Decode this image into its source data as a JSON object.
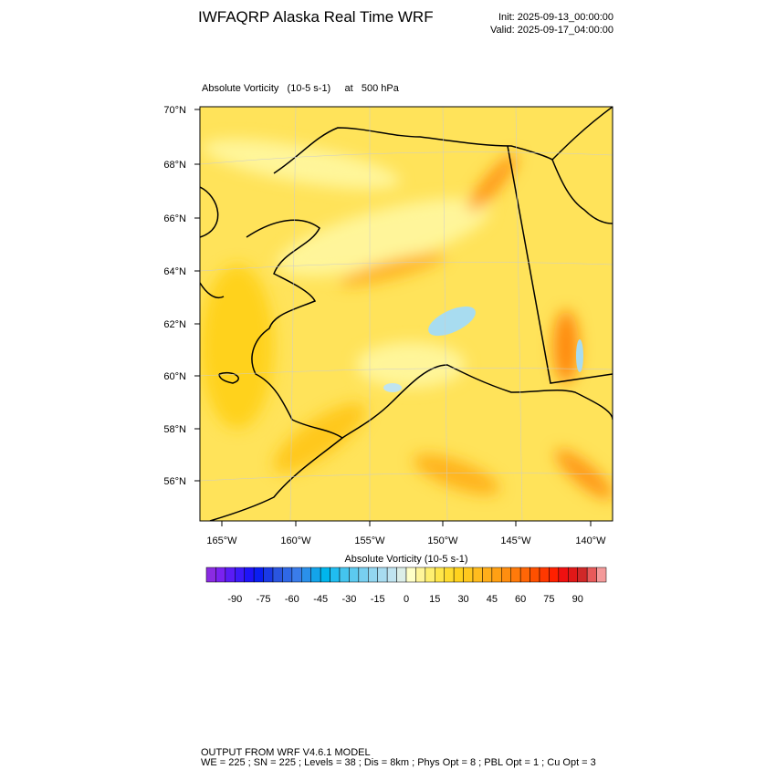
{
  "title": "IWFAQRP Alaska Real Time WRF",
  "init": "Init: 2025-09-13_00:00:00",
  "valid": "Valid: 2025-09-17_04:00:00",
  "field_label": "Absolute Vorticity   (10-5 s-1)     at   500 hPa",
  "lat_labels": [
    "70°N",
    "68°N",
    "66°N",
    "64°N",
    "62°N",
    "60°N",
    "58°N",
    "56°N"
  ],
  "lon_labels": [
    "165°W",
    "160°W",
    "155°W",
    "150°W",
    "145°W",
    "140°W"
  ],
  "colorbar": {
    "title": "Absolute Vorticity  (10-5 s-1)",
    "range": [
      -105,
      105
    ],
    "ticks": [
      -90,
      -75,
      -60,
      -45,
      -30,
      -15,
      0,
      15,
      30,
      45,
      60,
      75,
      90
    ],
    "colors": [
      "#8a2be2",
      "#7a22f0",
      "#5a1cf5",
      "#3c1af8",
      "#1e14f8",
      "#0a1ef2",
      "#1a3ae6",
      "#2a55e0",
      "#2f68e6",
      "#3a7cea",
      "#2a90ea",
      "#13a4ea",
      "#00b5ec",
      "#20bdf0",
      "#44c4ee",
      "#5ccaf0",
      "#78cff0",
      "#92d6f0",
      "#a8dcf0",
      "#c0e4f0",
      "#dceee8",
      "#ffffc8",
      "#fff59a",
      "#ffef70",
      "#ffe64a",
      "#ffdc30",
      "#ffd21e",
      "#ffc81e",
      "#ffbc1e",
      "#ffae1a",
      "#ffa014",
      "#ff8e10",
      "#ff7a0a",
      "#ff6606",
      "#ff5000",
      "#ff3800",
      "#ff2000",
      "#f01010",
      "#e01818",
      "#d02828",
      "#e85a5a",
      "#f49a9a"
    ]
  },
  "footer": [
    "OUTPUT FROM WRF V4.6.1 MODEL",
    "WE = 225 ; SN = 225 ; Levels = 38 ; Dis = 8km ; Phys Opt = 8 ; PBL Opt = 1 ; Cu Opt = 3"
  ]
}
